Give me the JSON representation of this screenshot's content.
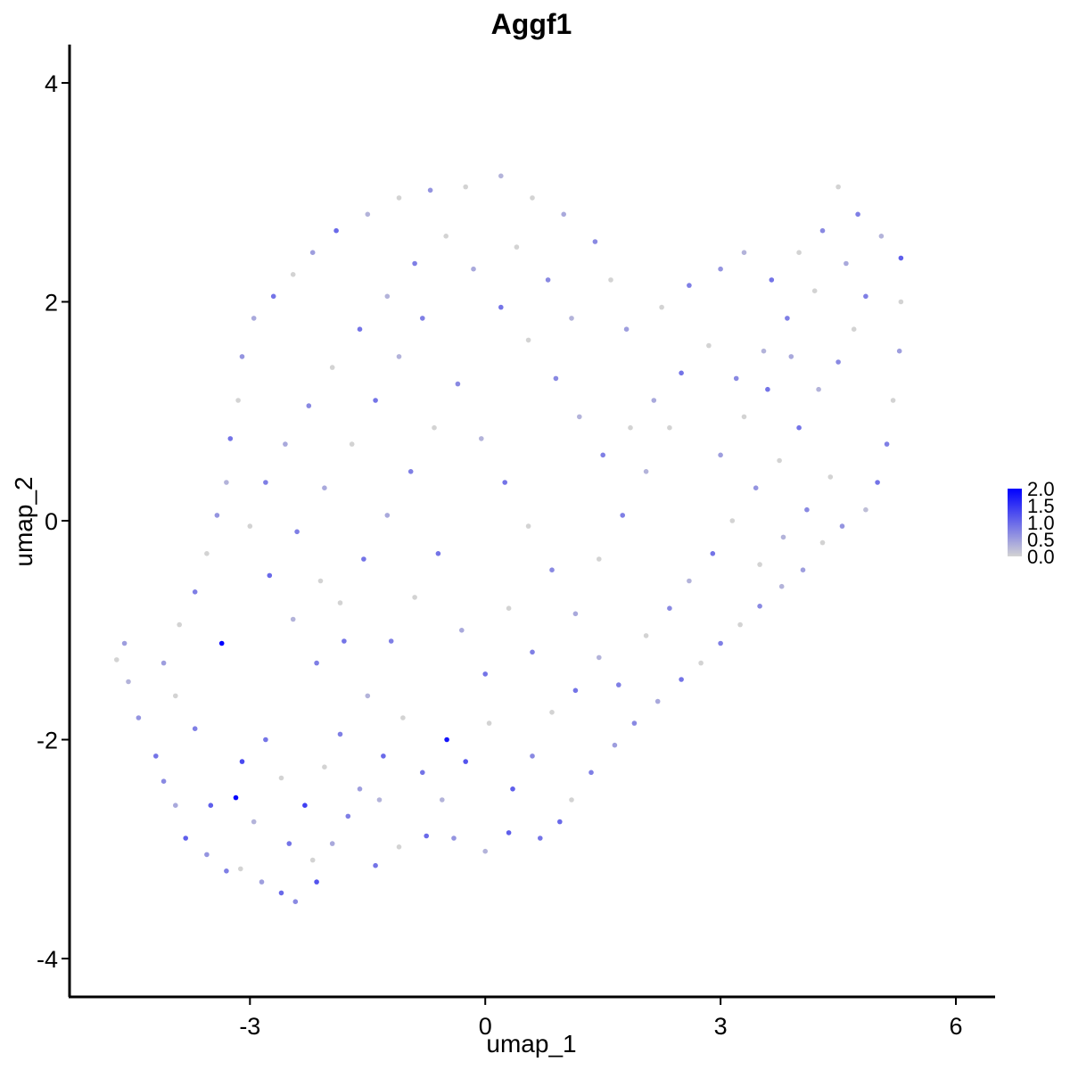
{
  "chart_data": {
    "type": "scatter",
    "title": "Aggf1",
    "xlabel": "umap_1",
    "ylabel": "umap_2",
    "xlim": [
      -5.3,
      6.5
    ],
    "ylim": [
      -4.35,
      4.35
    ],
    "xticks": [
      -3,
      0,
      3,
      6
    ],
    "xtick_labels": [
      "-3",
      "0",
      "3",
      "6"
    ],
    "yticks": [
      -4,
      -2,
      0,
      2,
      4
    ],
    "ytick_labels": [
      "-4",
      "-2",
      "0",
      "2",
      "4"
    ],
    "grid": false,
    "legend_position": "right",
    "colorbar": {
      "min": 0.0,
      "max": 2.0,
      "low_color": "#d3d3d3",
      "high_color": "#0000ff",
      "ticks": [
        0.0,
        0.5,
        1.0,
        1.5,
        2.0
      ],
      "tick_labels": [
        "0.0",
        "0.5",
        "1.0",
        "1.5",
        "2.0"
      ]
    },
    "points": [
      [
        -3.36,
        -1.12,
        2.0
      ],
      [
        -3.18,
        -2.53,
        1.95
      ],
      [
        -0.49,
        -2.0,
        1.8
      ],
      [
        -4.6,
        -1.12,
        0.5
      ],
      [
        -4.55,
        -1.47,
        0.3
      ],
      [
        -4.7,
        -1.27,
        0.0
      ],
      [
        -4.42,
        -1.8,
        0.6
      ],
      [
        -4.2,
        -2.15,
        0.9
      ],
      [
        -4.1,
        -2.38,
        0.7
      ],
      [
        -3.95,
        -2.6,
        0.4
      ],
      [
        -3.82,
        -2.9,
        1.1
      ],
      [
        -3.55,
        -3.05,
        0.6
      ],
      [
        -3.3,
        -3.2,
        0.8
      ],
      [
        -3.12,
        -3.18,
        0.0
      ],
      [
        -2.85,
        -3.3,
        0.5
      ],
      [
        -2.6,
        -3.4,
        1.0
      ],
      [
        -2.42,
        -3.48,
        0.7
      ],
      [
        -2.15,
        -3.3,
        1.2
      ],
      [
        -1.95,
        -2.95,
        0.4
      ],
      [
        -1.4,
        -3.15,
        0.9
      ],
      [
        -1.1,
        -2.98,
        0.0
      ],
      [
        -0.75,
        -2.88,
        1.0
      ],
      [
        -0.4,
        -2.9,
        0.6
      ],
      [
        0.0,
        -3.02,
        0.3
      ],
      [
        0.3,
        -2.85,
        1.1
      ],
      [
        0.7,
        -2.9,
        0.9
      ],
      [
        0.95,
        -2.75,
        1.0
      ],
      [
        1.1,
        -2.55,
        0.0
      ],
      [
        1.35,
        -2.3,
        0.8
      ],
      [
        1.65,
        -2.05,
        0.5
      ],
      [
        1.9,
        -1.85,
        0.7
      ],
      [
        2.2,
        -1.65,
        0.4
      ],
      [
        2.5,
        -1.45,
        0.9
      ],
      [
        2.75,
        -1.3,
        0.0
      ],
      [
        3.0,
        -1.12,
        0.8
      ],
      [
        3.25,
        -0.95,
        0.0
      ],
      [
        3.5,
        -0.78,
        0.7
      ],
      [
        3.78,
        -0.6,
        0.3
      ],
      [
        4.05,
        -0.45,
        0.5
      ],
      [
        4.3,
        -0.2,
        0.0
      ],
      [
        4.55,
        -0.05,
        0.6
      ],
      [
        4.85,
        0.1,
        0.2
      ],
      [
        5.0,
        0.35,
        0.9
      ],
      [
        5.12,
        0.7,
        0.8
      ],
      [
        5.2,
        1.1,
        0.0
      ],
      [
        5.28,
        1.55,
        0.5
      ],
      [
        5.3,
        2.0,
        0.0
      ],
      [
        5.3,
        2.4,
        1.1
      ],
      [
        5.05,
        2.6,
        0.3
      ],
      [
        4.75,
        2.8,
        0.8
      ],
      [
        4.5,
        3.05,
        0.0
      ],
      [
        4.3,
        2.65,
        0.7
      ],
      [
        4.0,
        2.45,
        0.0
      ],
      [
        3.65,
        2.2,
        0.9
      ],
      [
        3.3,
        2.45,
        0.3
      ],
      [
        3.0,
        2.3,
        0.6
      ],
      [
        2.6,
        2.15,
        0.8
      ],
      [
        2.25,
        1.95,
        0.0
      ],
      [
        1.8,
        1.75,
        0.5
      ],
      [
        1.6,
        2.2,
        0.0
      ],
      [
        1.4,
        2.55,
        0.7
      ],
      [
        1.0,
        2.8,
        0.4
      ],
      [
        0.6,
        2.95,
        0.0
      ],
      [
        0.2,
        3.15,
        0.3
      ],
      [
        -0.25,
        3.05,
        0.0
      ],
      [
        -0.7,
        3.02,
        0.6
      ],
      [
        -1.1,
        2.95,
        0.0
      ],
      [
        -1.5,
        2.8,
        0.3
      ],
      [
        -1.9,
        2.65,
        1.0
      ],
      [
        -2.2,
        2.45,
        0.5
      ],
      [
        -2.45,
        2.25,
        0.0
      ],
      [
        -2.7,
        2.05,
        0.9
      ],
      [
        -2.95,
        1.85,
        0.4
      ],
      [
        -3.1,
        1.5,
        0.6
      ],
      [
        -3.15,
        1.1,
        0.0
      ],
      [
        -3.25,
        0.75,
        0.9
      ],
      [
        -3.3,
        0.35,
        0.3
      ],
      [
        -3.42,
        0.05,
        0.6
      ],
      [
        -3.55,
        -0.3,
        0.0
      ],
      [
        -3.7,
        -0.65,
        0.8
      ],
      [
        -3.9,
        -0.95,
        0.0
      ],
      [
        -4.1,
        -1.3,
        0.5
      ],
      [
        -3.1,
        -2.2,
        1.3
      ],
      [
        -2.8,
        -2.0,
        0.9
      ],
      [
        -2.6,
        -2.35,
        0.0
      ],
      [
        -2.3,
        -2.6,
        1.4
      ],
      [
        -2.05,
        -2.25,
        0.0
      ],
      [
        -1.85,
        -1.95,
        0.8
      ],
      [
        -1.6,
        -2.45,
        0.5
      ],
      [
        -1.3,
        -2.15,
        1.0
      ],
      [
        -1.05,
        -1.8,
        0.0
      ],
      [
        -0.8,
        -2.3,
        0.9
      ],
      [
        -0.55,
        -2.55,
        0.3
      ],
      [
        -0.25,
        -2.2,
        1.2
      ],
      [
        0.05,
        -1.85,
        0.0
      ],
      [
        0.35,
        -2.45,
        1.1
      ],
      [
        0.6,
        -2.15,
        0.7
      ],
      [
        0.85,
        -1.75,
        0.0
      ],
      [
        1.15,
        -1.55,
        0.9
      ],
      [
        1.45,
        -1.25,
        0.3
      ],
      [
        1.7,
        -1.5,
        0.8
      ],
      [
        2.05,
        -1.05,
        0.0
      ],
      [
        2.35,
        -0.8,
        0.7
      ],
      [
        2.6,
        -0.55,
        0.3
      ],
      [
        2.9,
        -0.3,
        0.9
      ],
      [
        3.15,
        0.0,
        0.0
      ],
      [
        3.45,
        0.3,
        0.6
      ],
      [
        3.75,
        0.55,
        0.0
      ],
      [
        4.0,
        0.85,
        0.9
      ],
      [
        4.25,
        1.2,
        0.3
      ],
      [
        4.5,
        1.45,
        0.7
      ],
      [
        4.7,
        1.75,
        0.0
      ],
      [
        4.85,
        2.05,
        0.8
      ],
      [
        4.6,
        2.35,
        0.4
      ],
      [
        4.2,
        2.1,
        0.0
      ],
      [
        3.85,
        1.85,
        0.8
      ],
      [
        3.55,
        1.55,
        0.3
      ],
      [
        3.2,
        1.3,
        0.7
      ],
      [
        2.85,
        1.6,
        0.0
      ],
      [
        2.5,
        1.35,
        0.9
      ],
      [
        2.15,
        1.1,
        0.4
      ],
      [
        1.85,
        0.85,
        0.0
      ],
      [
        1.5,
        0.6,
        0.8
      ],
      [
        1.2,
        0.95,
        0.3
      ],
      [
        0.9,
        1.3,
        0.7
      ],
      [
        0.55,
        1.65,
        0.0
      ],
      [
        0.2,
        1.95,
        0.9
      ],
      [
        -0.15,
        2.3,
        0.4
      ],
      [
        -0.5,
        2.6,
        0.0
      ],
      [
        -0.9,
        2.35,
        0.8
      ],
      [
        -1.25,
        2.05,
        0.3
      ],
      [
        -1.6,
        1.75,
        0.9
      ],
      [
        -1.95,
        1.4,
        0.0
      ],
      [
        -2.25,
        1.05,
        0.7
      ],
      [
        -2.55,
        0.7,
        0.4
      ],
      [
        -2.8,
        0.35,
        0.8
      ],
      [
        -3.0,
        -0.05,
        0.0
      ],
      [
        -2.75,
        -0.5,
        1.0
      ],
      [
        -2.45,
        -0.9,
        0.3
      ],
      [
        -2.15,
        -1.3,
        0.8
      ],
      [
        -1.85,
        -0.75,
        0.0
      ],
      [
        -1.55,
        -0.35,
        0.9
      ],
      [
        -1.25,
        0.05,
        0.4
      ],
      [
        -0.95,
        0.45,
        0.8
      ],
      [
        -0.65,
        0.85,
        0.0
      ],
      [
        -0.35,
        1.25,
        0.7
      ],
      [
        -0.05,
        0.75,
        0.3
      ],
      [
        0.25,
        0.35,
        0.9
      ],
      [
        0.55,
        -0.05,
        0.0
      ],
      [
        0.85,
        -0.45,
        0.7
      ],
      [
        1.15,
        -0.85,
        0.4
      ],
      [
        1.45,
        -0.35,
        0.0
      ],
      [
        1.75,
        0.05,
        0.8
      ],
      [
        2.05,
        0.45,
        0.3
      ],
      [
        2.35,
        0.85,
        0.0
      ],
      [
        -0.6,
        -0.3,
        0.9
      ],
      [
        -0.9,
        -0.7,
        0.0
      ],
      [
        -1.2,
        -1.1,
        0.8
      ],
      [
        -0.3,
        -1.0,
        0.4
      ],
      [
        0.0,
        -1.4,
        0.9
      ],
      [
        0.3,
        -0.8,
        0.0
      ],
      [
        0.6,
        -1.2,
        0.8
      ],
      [
        -1.5,
        -1.6,
        0.3
      ],
      [
        -1.8,
        -1.1,
        0.9
      ],
      [
        -2.1,
        -0.55,
        0.0
      ],
      [
        -2.4,
        -0.1,
        0.8
      ],
      [
        -2.05,
        0.3,
        0.4
      ],
      [
        -1.7,
        0.7,
        0.0
      ],
      [
        -1.4,
        1.1,
        0.9
      ],
      [
        -1.1,
        1.5,
        0.3
      ],
      [
        -0.8,
        1.85,
        0.8
      ],
      [
        0.4,
        2.5,
        0.0
      ],
      [
        0.8,
        2.2,
        0.7
      ],
      [
        1.1,
        1.85,
        0.3
      ],
      [
        3.0,
        0.6,
        0.5
      ],
      [
        3.3,
        0.95,
        0.0
      ],
      [
        3.6,
        1.2,
        0.9
      ],
      [
        3.9,
        1.5,
        0.4
      ],
      [
        4.4,
        0.4,
        0.0
      ],
      [
        4.1,
        0.1,
        0.7
      ],
      [
        3.8,
        -0.15,
        0.3
      ],
      [
        3.5,
        -0.4,
        0.0
      ],
      [
        -3.7,
        -1.9,
        0.8
      ],
      [
        -3.95,
        -1.6,
        0.0
      ],
      [
        -3.5,
        -2.6,
        1.1
      ],
      [
        -2.95,
        -2.75,
        0.3
      ],
      [
        -2.5,
        -2.95,
        0.9
      ],
      [
        -2.2,
        -3.1,
        0.0
      ],
      [
        -1.75,
        -2.7,
        0.8
      ],
      [
        -1.35,
        -2.55,
        0.3
      ]
    ]
  }
}
